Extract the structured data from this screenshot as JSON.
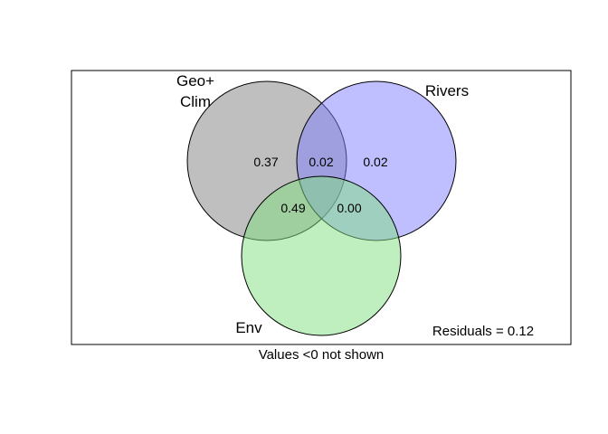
{
  "diagram": {
    "type": "venn",
    "sets": [
      {
        "label_lines": [
          "Geo+",
          "Clim"
        ],
        "color": "#808080"
      },
      {
        "label_lines": [
          "Rivers"
        ],
        "color": "#8080ff"
      },
      {
        "label_lines": [
          "Env"
        ],
        "color": "#80e080"
      }
    ],
    "regions": {
      "geo_clim_only": "0.37",
      "geo_clim_rivers": "0.02",
      "rivers_only": "0.02",
      "geo_clim_env": "0.49",
      "rivers_env": "0.00"
    },
    "residuals_text": "Residuals = 0.12",
    "footnote": "Values <0 not shown"
  }
}
